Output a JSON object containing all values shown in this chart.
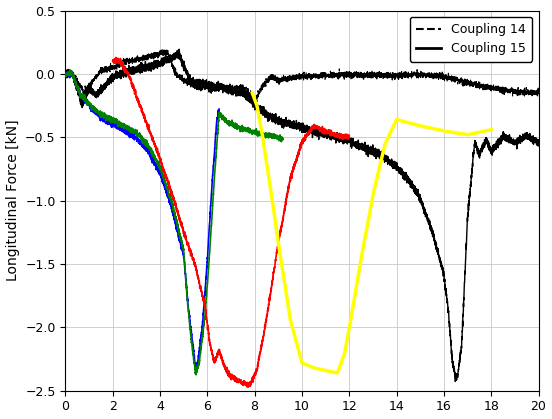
{
  "ylabel": "Longitudinal Force [kN]",
  "xlim": [
    0,
    20
  ],
  "ylim": [
    -2.5,
    0.5
  ],
  "xticks": [
    0,
    2,
    4,
    6,
    8,
    10,
    12,
    14,
    16,
    18,
    20
  ],
  "yticks": [
    -2.5,
    -2.0,
    -1.5,
    -1.0,
    -0.5,
    0,
    0.5
  ],
  "background_color": "#ffffff",
  "grid_color": "#c8c8c8"
}
